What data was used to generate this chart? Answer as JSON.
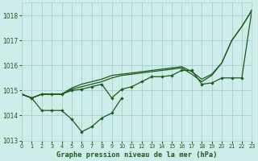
{
  "title": "Graphe pression niveau de la mer (hPa)",
  "background_color": "#ceecea",
  "grid_color": "#aad4d0",
  "line_color": "#1a5c1a",
  "ylim": [
    1013.0,
    1018.5
  ],
  "xlim": [
    0,
    23
  ],
  "yticks": [
    1013,
    1014,
    1015,
    1016,
    1017,
    1018
  ],
  "xticks": [
    0,
    1,
    2,
    3,
    4,
    5,
    6,
    7,
    8,
    9,
    10,
    11,
    12,
    13,
    14,
    15,
    16,
    17,
    18,
    19,
    20,
    21,
    22,
    23
  ],
  "series": [
    {
      "x": [
        0,
        1,
        2,
        3,
        4,
        5,
        6,
        7,
        8,
        9,
        10
      ],
      "y": [
        1014.85,
        1014.7,
        1014.2,
        1014.2,
        1014.2,
        1013.85,
        1013.35,
        1013.55,
        1013.9,
        1014.1,
        1014.7
      ],
      "marker": true
    },
    {
      "x": [
        0,
        1,
        2,
        3,
        4,
        5,
        6,
        7,
        8,
        9,
        10,
        11,
        12,
        13,
        14,
        15,
        16,
        17,
        18,
        19,
        20,
        21,
        22,
        23
      ],
      "y": [
        1014.85,
        1014.7,
        1014.85,
        1014.85,
        1014.85,
        1015.0,
        1015.05,
        1015.15,
        1015.25,
        1014.7,
        1015.05,
        1015.15,
        1015.35,
        1015.55,
        1015.55,
        1015.6,
        1015.8,
        1015.8,
        1015.25,
        1015.3,
        1015.5,
        1015.5,
        1015.5,
        1018.2
      ],
      "marker": true
    },
    {
      "x": [
        0,
        1,
        2,
        3,
        4,
        5,
        6,
        7,
        8,
        9,
        10,
        11,
        12,
        13,
        14,
        15,
        16,
        17,
        18,
        19,
        20,
        21,
        22,
        23
      ],
      "y": [
        1014.85,
        1014.7,
        1014.85,
        1014.85,
        1014.85,
        1015.05,
        1015.15,
        1015.25,
        1015.35,
        1015.5,
        1015.6,
        1015.65,
        1015.7,
        1015.75,
        1015.8,
        1015.85,
        1015.9,
        1015.65,
        1015.35,
        1015.6,
        1016.1,
        1017.0,
        1017.55,
        1018.2
      ],
      "marker": false
    },
    {
      "x": [
        0,
        1,
        2,
        3,
        4,
        5,
        6,
        7,
        8,
        9,
        10,
        11,
        12,
        13,
        14,
        15,
        16,
        17,
        18,
        19,
        20,
        21,
        22,
        23
      ],
      "y": [
        1014.85,
        1014.7,
        1014.85,
        1014.85,
        1014.85,
        1015.1,
        1015.25,
        1015.35,
        1015.45,
        1015.6,
        1015.65,
        1015.7,
        1015.75,
        1015.8,
        1015.85,
        1015.9,
        1015.95,
        1015.75,
        1015.45,
        1015.65,
        1016.1,
        1017.0,
        1017.55,
        1018.2
      ],
      "marker": false
    }
  ]
}
